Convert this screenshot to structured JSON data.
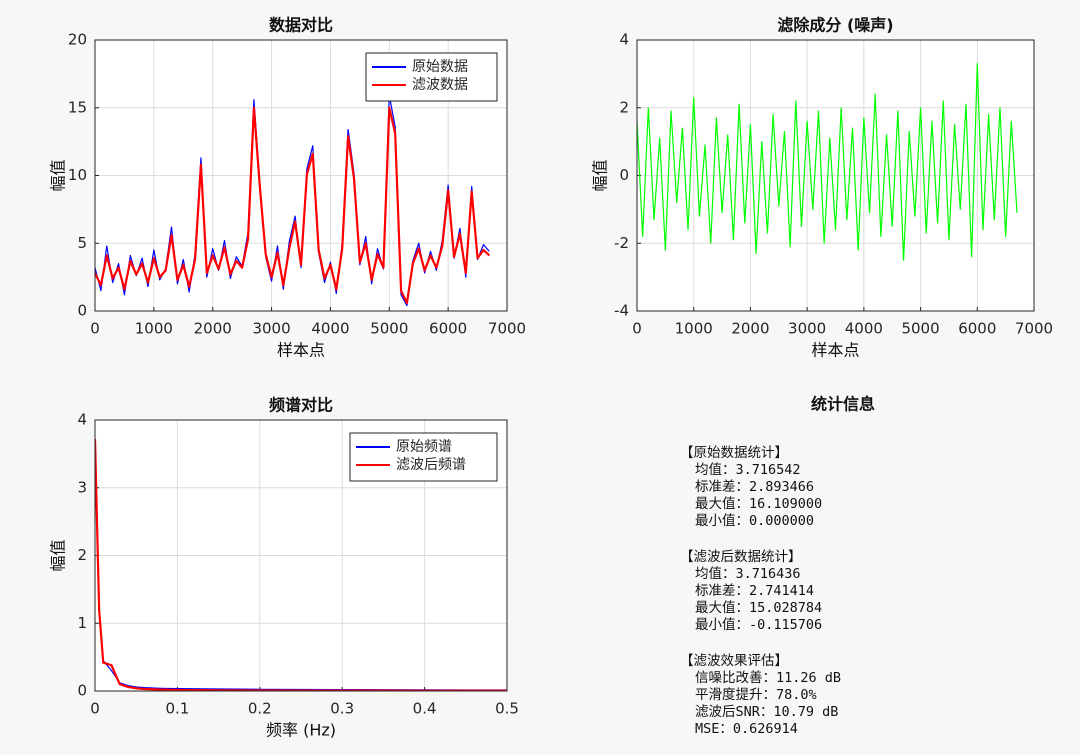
{
  "chart_data": [
    {
      "type": "line",
      "title": "数据对比",
      "xlabel": "样本点",
      "ylabel": "幅值",
      "x": [
        0,
        100,
        200,
        300,
        400,
        500,
        600,
        700,
        800,
        900,
        1000,
        1100,
        1200,
        1300,
        1400,
        1500,
        1600,
        1700,
        1800,
        1900,
        2000,
        2100,
        2200,
        2300,
        2400,
        2500,
        2600,
        2700,
        2800,
        2900,
        3000,
        3100,
        3200,
        3300,
        3400,
        3500,
        3600,
        3700,
        3800,
        3900,
        4000,
        4100,
        4200,
        4300,
        4400,
        4500,
        4600,
        4700,
        4800,
        4900,
        5000,
        5100,
        5200,
        5300,
        5400,
        5500,
        5600,
        5700,
        5800,
        5900,
        6000,
        6100,
        6200,
        6300,
        6400,
        6500,
        6600,
        6700
      ],
      "series": [
        {
          "name": "原始数据",
          "color": "#0000ff",
          "values": [
            3.2,
            1.5,
            4.8,
            2.1,
            3.5,
            1.2,
            4.1,
            2.6,
            3.9,
            1.8,
            4.5,
            2.3,
            3.1,
            6.2,
            2.0,
            3.8,
            1.4,
            4.2,
            11.3,
            2.5,
            4.6,
            3.0,
            5.2,
            2.4,
            4.0,
            3.3,
            5.8,
            15.6,
            9.5,
            4.0,
            2.2,
            4.8,
            1.6,
            5.1,
            7.0,
            3.2,
            10.5,
            12.2,
            4.3,
            2.1,
            3.6,
            1.3,
            5.0,
            13.4,
            10.2,
            3.4,
            5.5,
            2.0,
            4.6,
            3.1,
            15.9,
            13.6,
            1.2,
            0.4,
            3.7,
            5.0,
            2.8,
            4.4,
            3.0,
            5.2,
            9.3,
            3.9,
            6.1,
            2.5,
            9.2,
            3.8,
            4.9,
            4.4
          ]
        },
        {
          "name": "滤波数据",
          "color": "#ff0000",
          "values": [
            2.8,
            1.9,
            4.1,
            2.4,
            3.2,
            1.6,
            3.7,
            2.7,
            3.5,
            2.1,
            3.9,
            2.5,
            3.0,
            5.6,
            2.3,
            3.4,
            1.8,
            3.8,
            10.8,
            2.8,
            4.1,
            3.1,
            4.7,
            2.7,
            3.7,
            3.2,
            5.3,
            15.0,
            9.2,
            4.2,
            2.5,
            4.3,
            1.9,
            4.6,
            6.6,
            3.4,
            10.1,
            11.6,
            4.5,
            2.4,
            3.4,
            1.6,
            4.6,
            12.9,
            9.8,
            3.6,
            5.0,
            2.3,
            4.2,
            3.2,
            15.0,
            13.1,
            1.5,
            0.6,
            3.5,
            4.6,
            3.0,
            4.1,
            3.2,
            4.8,
            8.9,
            4.0,
            5.7,
            2.8,
            8.8,
            3.9,
            4.5,
            4.1
          ]
        }
      ],
      "xlim": [
        0,
        7000
      ],
      "xticks": [
        0,
        1000,
        2000,
        3000,
        4000,
        5000,
        6000,
        7000
      ],
      "ylim": [
        0,
        20
      ],
      "yticks": [
        0,
        5,
        10,
        15,
        20
      ],
      "grid": true,
      "legend": "northeast"
    },
    {
      "type": "line",
      "title": "滤除成分 (噪声)",
      "xlabel": "样本点",
      "ylabel": "幅值",
      "x": [
        0,
        100,
        200,
        300,
        400,
        500,
        600,
        700,
        800,
        900,
        1000,
        1100,
        1200,
        1300,
        1400,
        1500,
        1600,
        1700,
        1800,
        1900,
        2000,
        2100,
        2200,
        2300,
        2400,
        2500,
        2600,
        2700,
        2800,
        2900,
        3000,
        3100,
        3200,
        3300,
        3400,
        3500,
        3600,
        3700,
        3800,
        3900,
        4000,
        4100,
        4200,
        4300,
        4400,
        4500,
        4600,
        4700,
        4800,
        4900,
        5000,
        5100,
        5200,
        5300,
        5400,
        5500,
        5600,
        5700,
        5800,
        5900,
        6000,
        6100,
        6200,
        6300,
        6400,
        6500,
        6600,
        6700
      ],
      "series": [
        {
          "color": "#00ff00",
          "values": [
            1.6,
            -1.8,
            2.0,
            -1.3,
            1.1,
            -2.2,
            1.9,
            -0.8,
            1.4,
            -1.6,
            2.3,
            -1.2,
            0.9,
            -2.0,
            1.7,
            -1.1,
            1.2,
            -1.9,
            2.1,
            -1.4,
            1.5,
            -2.3,
            1.0,
            -1.7,
            1.8,
            -0.9,
            1.3,
            -2.1,
            2.2,
            -1.5,
            1.6,
            -1.0,
            1.9,
            -2.0,
            1.1,
            -1.6,
            2.0,
            -1.3,
            1.4,
            -2.2,
            1.7,
            -1.1,
            2.4,
            -1.8,
            1.2,
            -1.5,
            1.9,
            -2.5,
            1.3,
            -1.2,
            2.0,
            -1.7,
            1.6,
            -1.4,
            2.2,
            -1.9,
            1.5,
            -1.0,
            2.1,
            -2.4,
            3.3,
            -1.6,
            1.8,
            -1.3,
            2.0,
            -1.8,
            1.6,
            -1.1
          ]
        }
      ],
      "xlim": [
        0,
        7000
      ],
      "xticks": [
        0,
        1000,
        2000,
        3000,
        4000,
        5000,
        6000,
        7000
      ],
      "ylim": [
        -4,
        4
      ],
      "yticks": [
        -4,
        -2,
        0,
        2,
        4
      ],
      "grid": true
    },
    {
      "type": "line",
      "title": "频谱对比",
      "xlabel": "频率 (Hz)",
      "ylabel": "幅值",
      "x": [
        0,
        0.005,
        0.01,
        0.02,
        0.03,
        0.04,
        0.05,
        0.06,
        0.08,
        0.1,
        0.15,
        0.2,
        0.25,
        0.3,
        0.35,
        0.4,
        0.45,
        0.5
      ],
      "series": [
        {
          "name": "原始频谱",
          "color": "#0000ff",
          "values": [
            3.72,
            1.25,
            0.45,
            0.3,
            0.12,
            0.08,
            0.06,
            0.05,
            0.04,
            0.035,
            0.03,
            0.025,
            0.022,
            0.02,
            0.018,
            0.017,
            0.016,
            0.015
          ]
        },
        {
          "name": "滤波后频谱",
          "color": "#ff0000",
          "values": [
            3.72,
            1.2,
            0.42,
            0.38,
            0.1,
            0.06,
            0.04,
            0.03,
            0.02,
            0.015,
            0.01,
            0.008,
            0.006,
            0.005,
            0.005,
            0.004,
            0.004,
            0.004
          ]
        }
      ],
      "xlim": [
        0,
        0.5
      ],
      "xticks": [
        0,
        0.1,
        0.2,
        0.3,
        0.4,
        0.5
      ],
      "ylim": [
        0,
        4
      ],
      "yticks": [
        0,
        1,
        2,
        3,
        4
      ],
      "grid": true,
      "legend": "northeast"
    }
  ],
  "stats": {
    "title": "统计信息",
    "sections": [
      {
        "heading": "【原始数据统计】",
        "lines": [
          "均值：3.716542",
          "标准差：2.893466",
          "最大值：16.109000",
          "最小值：0.000000"
        ]
      },
      {
        "heading": "【滤波后数据统计】",
        "lines": [
          "均值：3.716436",
          "标准差：2.741414",
          "最大值：15.028784",
          "最小值：-0.115706"
        ]
      },
      {
        "heading": "【滤波效果评估】",
        "lines": [
          "信噪比改善：11.26 dB",
          "平滑度提升：78.0%",
          "滤波后SNR：10.79 dB",
          "MSE：0.626914"
        ]
      }
    ]
  }
}
